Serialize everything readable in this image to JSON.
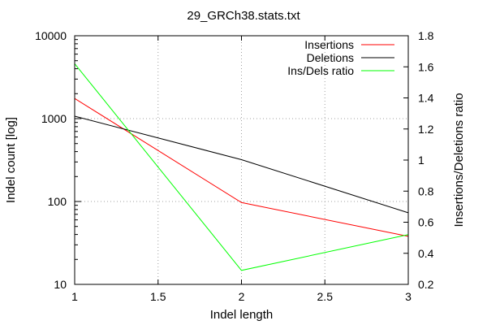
{
  "chart_data": {
    "type": "line",
    "title": "29_GRCh38.stats.txt",
    "xlabel": "Indel length",
    "ylabel": "Indel count [log]",
    "y2label": "Insertions/Deletions ratio",
    "x_ticks": [
      "1",
      "1.5",
      "2",
      "2.5",
      "3"
    ],
    "y_ticks": [
      "10",
      "100",
      "1000",
      "10000"
    ],
    "y2_ticks": [
      "0.2",
      "0.4",
      "0.6",
      "0.8",
      "1",
      "1.2",
      "1.4",
      "1.6",
      "1.8"
    ],
    "xlim": [
      1,
      3
    ],
    "ylim": [
      10,
      10000
    ],
    "y_scale": "log",
    "y2lim": [
      0.2,
      1.8
    ],
    "grid": true,
    "legend_position": "top-right",
    "series": [
      {
        "name": "Insertions",
        "axis": "left",
        "color": "#ff0000",
        "x": [
          1,
          2,
          3
        ],
        "values": [
          1750,
          97,
          38
        ]
      },
      {
        "name": "Deletions",
        "axis": "left",
        "color": "#000000",
        "x": [
          1,
          2,
          3
        ],
        "values": [
          1070,
          320,
          73
        ]
      },
      {
        "name": "Ins/Dels ratio",
        "axis": "right",
        "color": "#00ff00",
        "x": [
          1,
          2,
          3
        ],
        "values": [
          1.62,
          0.29,
          0.52
        ]
      }
    ]
  }
}
